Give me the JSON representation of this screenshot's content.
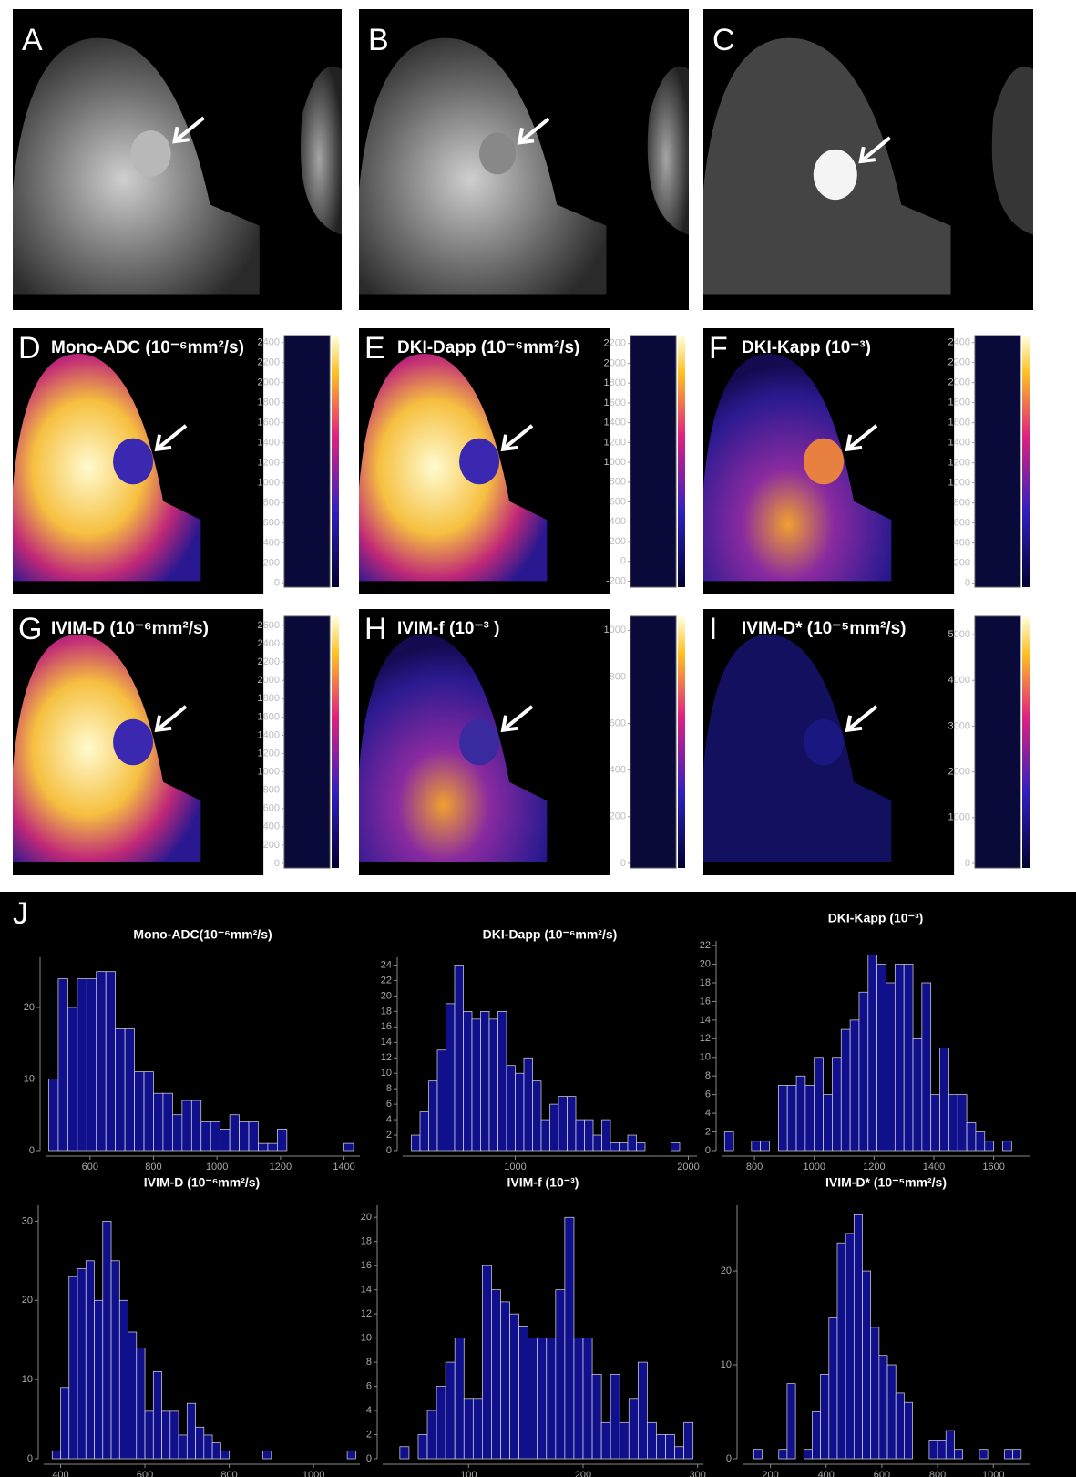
{
  "panels": [
    {
      "label": "A"
    },
    {
      "label": "B"
    },
    {
      "label": "C"
    }
  ],
  "maps": [
    {
      "label": "D",
      "title": "Mono-ADC (10⁻⁶mm²/s)",
      "colorbar": {
        "lim": [
          -40,
          2470
        ],
        "ticks": [
          0,
          200,
          400,
          600,
          800,
          1000,
          1200,
          1400,
          1600,
          1800,
          2000,
          2200,
          2400
        ]
      }
    },
    {
      "label": "E",
      "title": "DKI-Dapp (10⁻⁶mm²/s)",
      "colorbar": {
        "lim": [
          -260,
          2280
        ],
        "ticks": [
          -200,
          0,
          200,
          400,
          600,
          800,
          1000,
          1200,
          1400,
          1600,
          1800,
          2000,
          2200
        ]
      }
    },
    {
      "label": "F",
      "title": "DKI-Kapp (10⁻³)",
      "colorbar": {
        "lim": [
          -40,
          2470
        ],
        "ticks": [
          0,
          200,
          400,
          600,
          800,
          1000,
          1200,
          1400,
          1600,
          1800,
          2000,
          2200,
          2400
        ]
      }
    },
    {
      "label": "G",
      "title": "IVIM-D (10⁻⁶mm²/s)",
      "colorbar": {
        "lim": [
          -50,
          2700
        ],
        "ticks": [
          0,
          200,
          400,
          600,
          800,
          1000,
          1200,
          1400,
          1600,
          1800,
          2000,
          2200,
          2400,
          2600
        ]
      }
    },
    {
      "label": "H",
      "title": "IVIM-f (10⁻³ )",
      "colorbar": {
        "lim": [
          -20,
          1060
        ],
        "ticks": [
          0,
          200,
          400,
          600,
          800,
          1000
        ]
      }
    },
    {
      "label": "I",
      "title": "IVIM-D* (10⁻⁵mm²/s)",
      "colorbar": {
        "lim": [
          -100,
          5400
        ],
        "ticks": [
          0,
          1000,
          2000,
          3000,
          4000,
          5000
        ]
      }
    }
  ],
  "histogram_label": "J",
  "chart_data": [
    {
      "type": "histogram",
      "title": "Mono-ADC(10⁻⁶mm²/s)",
      "color": "#10108c",
      "bins": [
        470,
        500,
        530,
        560,
        590,
        620,
        650,
        680,
        710,
        740,
        770,
        800,
        830,
        860,
        890,
        920,
        950,
        980,
        1010,
        1040,
        1070,
        1100,
        1130,
        1160,
        1190,
        1220,
        1250,
        1280,
        1310,
        1340,
        1370,
        1400,
        1430
      ],
      "values": [
        10,
        24,
        20,
        24,
        24,
        25,
        25,
        17,
        17,
        11,
        11,
        8,
        8,
        5,
        7,
        7,
        4,
        4,
        3,
        5,
        4,
        4,
        1,
        1,
        3,
        0,
        0,
        0,
        0,
        0,
        0,
        1
      ],
      "xlim": [
        460,
        1450
      ],
      "ylim": [
        0,
        27
      ],
      "xticks": [
        600,
        800,
        1000,
        1200,
        1400
      ],
      "yticks": [
        0,
        10,
        20
      ]
    },
    {
      "type": "histogram",
      "title": "DKI-Dapp (10⁻⁶mm²/s)",
      "color": "#10108c",
      "bins": [
        400,
        450,
        500,
        550,
        600,
        650,
        700,
        750,
        800,
        850,
        900,
        950,
        1000,
        1050,
        1100,
        1150,
        1200,
        1250,
        1300,
        1350,
        1400,
        1450,
        1500,
        1550,
        1600,
        1650,
        1700,
        1750,
        1800,
        1850,
        1900,
        1950
      ],
      "values": [
        2,
        5,
        9,
        13,
        19,
        24,
        18,
        17,
        18,
        17,
        18,
        11,
        10,
        12,
        9,
        4,
        6,
        7,
        7,
        4,
        4,
        2,
        4,
        1,
        1,
        2,
        1,
        0,
        0,
        0,
        1
      ],
      "xlim": [
        350,
        2050
      ],
      "ylim": [
        0,
        25
      ],
      "xticks": [
        1000,
        2000
      ],
      "yticks": [
        0,
        2,
        4,
        6,
        8,
        10,
        12,
        14,
        16,
        18,
        20,
        22,
        24
      ]
    },
    {
      "type": "histogram",
      "title": "DKI-Kapp (10⁻³)",
      "color": "#10108c",
      "bins": [
        700,
        730,
        760,
        790,
        820,
        850,
        880,
        910,
        940,
        970,
        1000,
        1030,
        1060,
        1090,
        1120,
        1150,
        1180,
        1210,
        1240,
        1270,
        1300,
        1330,
        1360,
        1390,
        1420,
        1450,
        1480,
        1510,
        1540,
        1570,
        1600,
        1630,
        1660
      ],
      "values": [
        2,
        0,
        0,
        1,
        1,
        0,
        7,
        7,
        8,
        7,
        10,
        6,
        10,
        13,
        14,
        17,
        21,
        20,
        18,
        20,
        20,
        12,
        18,
        6,
        11,
        6,
        6,
        3,
        2,
        1,
        0,
        1
      ],
      "xlim": [
        690,
        1720
      ],
      "ylim": [
        0,
        22.5
      ],
      "xticks": [
        800,
        1000,
        1200,
        1400,
        1600
      ],
      "yticks": [
        0,
        2,
        4,
        6,
        8,
        10,
        12,
        14,
        16,
        18,
        20,
        22
      ]
    },
    {
      "type": "histogram",
      "title": "IVIM-D (10⁻⁶mm²/s)",
      "color": "#10108c",
      "bins": [
        380,
        400,
        420,
        440,
        460,
        480,
        500,
        520,
        540,
        560,
        580,
        600,
        620,
        640,
        660,
        680,
        700,
        720,
        740,
        760,
        780,
        800,
        820,
        840,
        860,
        880,
        900,
        920,
        940,
        960,
        980,
        1000,
        1020,
        1040,
        1060,
        1080,
        1100
      ],
      "values": [
        1,
        9,
        23,
        24,
        25,
        20,
        30,
        25,
        20,
        16,
        14,
        6,
        11,
        6,
        6,
        3,
        7,
        4,
        3,
        2,
        1,
        0,
        0,
        0,
        0,
        1,
        0,
        0,
        0,
        0,
        0,
        0,
        0,
        0,
        0,
        1
      ],
      "xlim": [
        360,
        1110
      ],
      "ylim": [
        0,
        32
      ],
      "xticks": [
        400,
        600,
        800,
        1000
      ],
      "yticks": [
        0,
        10,
        20,
        30
      ]
    },
    {
      "type": "histogram",
      "title": "IVIM-f (10⁻³)",
      "color": "#10108c",
      "bins": [
        40,
        48,
        56,
        64,
        72,
        80,
        88,
        96,
        104,
        112,
        120,
        128,
        136,
        144,
        152,
        160,
        168,
        176,
        184,
        192,
        200,
        208,
        216,
        224,
        232,
        240,
        248,
        256,
        264,
        272,
        280,
        288,
        296
      ],
      "values": [
        1,
        0,
        2,
        4,
        6,
        8,
        10,
        5,
        5,
        16,
        14,
        13,
        12,
        11,
        10,
        10,
        10,
        14,
        20,
        10,
        10,
        7,
        3,
        7,
        3,
        5,
        8,
        3,
        2,
        2,
        1,
        3
      ],
      "xlim": [
        25,
        305
      ],
      "ylim": [
        0,
        21
      ],
      "xticks": [
        100,
        200,
        300
      ],
      "yticks": [
        0,
        2,
        4,
        6,
        8,
        10,
        12,
        14,
        16,
        18,
        20
      ]
    },
    {
      "type": "histogram",
      "title": "IVIM-D* (10⁻⁵mm²/s)",
      "color": "#10108c",
      "bins": [
        140,
        170,
        200,
        230,
        260,
        290,
        320,
        350,
        380,
        410,
        440,
        470,
        500,
        530,
        560,
        590,
        620,
        650,
        680,
        710,
        740,
        770,
        800,
        830,
        860,
        890,
        920,
        950,
        980,
        1010,
        1040,
        1070,
        1100
      ],
      "values": [
        1,
        0,
        0,
        1,
        8,
        0,
        1,
        5,
        9,
        15,
        23,
        24,
        26,
        20,
        14,
        11,
        10,
        7,
        6,
        0,
        0,
        2,
        2,
        3,
        1,
        0,
        0,
        1,
        0,
        0,
        1,
        1
      ],
      "xlim": [
        100,
        1130
      ],
      "ylim": [
        0,
        27
      ],
      "xticks": [
        200,
        400,
        600,
        800,
        1000
      ],
      "yticks": [
        0,
        10,
        20
      ]
    }
  ]
}
